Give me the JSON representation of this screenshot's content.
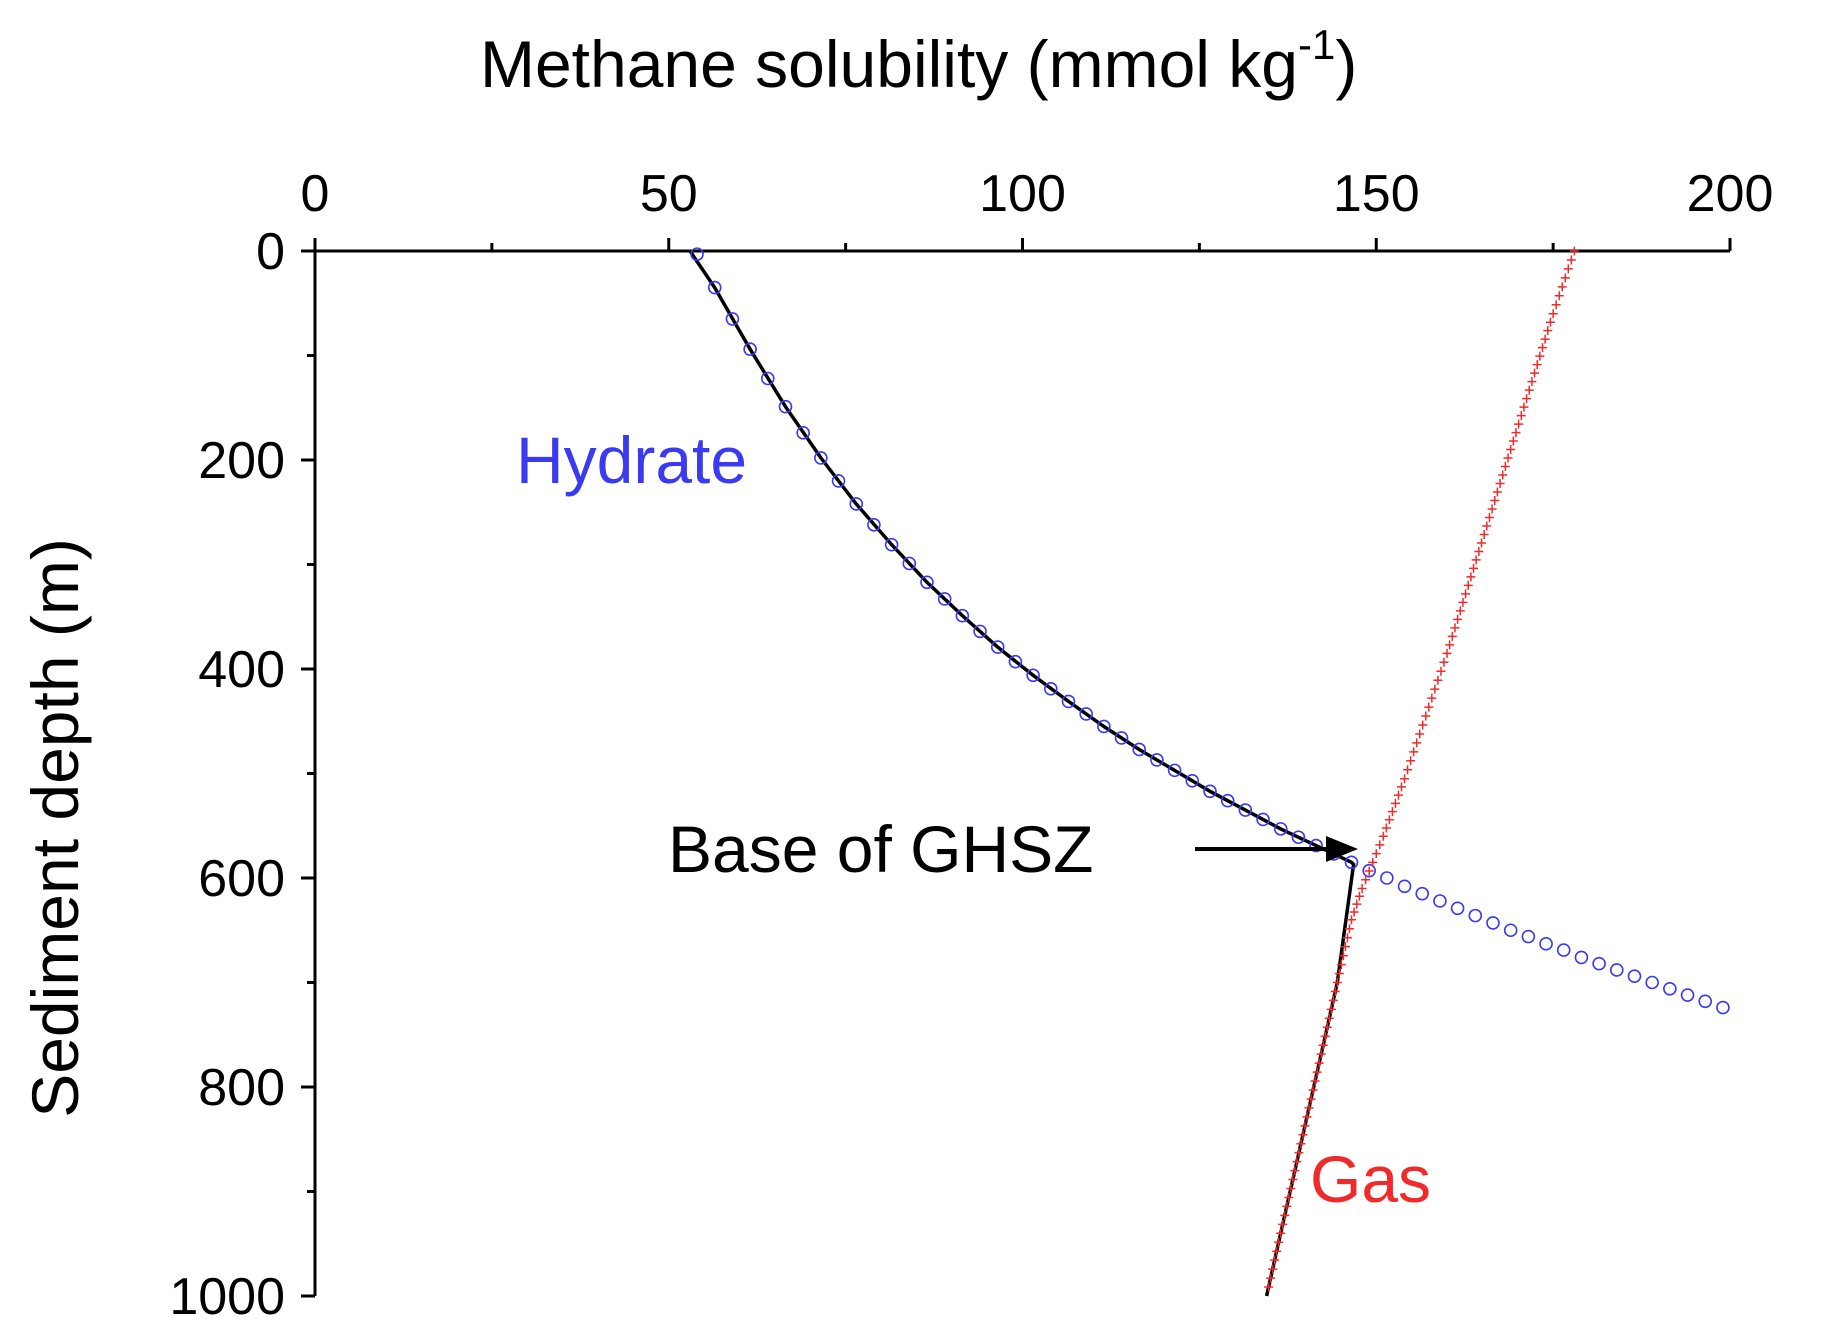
{
  "chart_data": {
    "type": "line",
    "title": "",
    "xlabel": "Methane solubility (mmol kg",
    "xlabel_sup": "-1",
    "xlabel_end": ")",
    "ylabel": "Sediment depth (m)",
    "x_axis_position": "top",
    "y_axis_inverted": true,
    "xlim": [
      0,
      200
    ],
    "ylim": [
      0,
      1000
    ],
    "x_ticks": [
      0,
      50,
      100,
      150,
      200
    ],
    "x_tick_labels": [
      "0",
      "50",
      "100",
      "150",
      "200"
    ],
    "y_ticks": [
      0,
      200,
      400,
      600,
      800,
      1000
    ],
    "y_tick_labels": [
      "0",
      "200",
      "400",
      "600",
      "800",
      "1000"
    ],
    "grid": false,
    "colors": {
      "hydrate": "#3a3af0",
      "gas": "#f02a2a",
      "solubility": "#000000"
    },
    "series": [
      {
        "name": "Hydrate",
        "marker": "circle",
        "x": [
          54,
          56.5,
          59,
          61.5,
          64,
          66.5,
          69,
          71.5,
          74,
          76.5,
          79,
          81.5,
          84,
          86.5,
          89,
          91.5,
          94,
          96.5,
          99,
          101.5,
          104,
          106.5,
          109,
          111.5,
          114,
          116.5,
          119,
          121.5,
          124,
          126.5,
          129,
          131.5,
          134,
          136.5,
          139,
          141.5,
          144,
          146.5,
          149,
          151.5,
          154,
          156.5,
          159,
          161.5,
          164,
          166.5,
          169,
          171.5,
          174,
          176.5,
          179,
          181.5,
          184,
          186.5,
          189,
          191.5,
          194,
          196.5,
          199
        ],
        "y": [
          3,
          35,
          65,
          94,
          122,
          149,
          174,
          198,
          220,
          242,
          262,
          281,
          299,
          317,
          333,
          349,
          364,
          379,
          393,
          406,
          419,
          431,
          443,
          455,
          466,
          477,
          487,
          497,
          507,
          517,
          526,
          535,
          544,
          553,
          561,
          569,
          577,
          585,
          593,
          600,
          608,
          615,
          622,
          629,
          636,
          643,
          650,
          656,
          663,
          669,
          676,
          682,
          688,
          694,
          700,
          706,
          712,
          718,
          724
        ]
      },
      {
        "name": "Gas",
        "marker": "plus",
        "x": [
          178,
          175,
          172,
          169,
          166,
          163,
          160,
          157,
          154,
          151,
          148,
          146.5,
          144.5,
          142.5,
          140.5,
          138.5,
          136.5,
          134.5
        ],
        "y": [
          0,
          60,
          125,
          190,
          255,
          320,
          385,
          445,
          505,
          560,
          610,
          640,
          700,
          760,
          820,
          880,
          940,
          1000
        ]
      },
      {
        "name": "",
        "marker": "line",
        "x": [
          53,
          56.5,
          61.5,
          66.5,
          71.5,
          76.5,
          81.5,
          86.5,
          91.5,
          96.5,
          101.5,
          106.5,
          111.5,
          116.5,
          121.5,
          126.5,
          131.5,
          136.5,
          141.5,
          146.5,
          146.8,
          144.5,
          142.5,
          140.5,
          138.5,
          136.5,
          134.5
        ],
        "y": [
          0,
          35,
          94,
          149,
          198,
          242,
          281,
          317,
          349,
          379,
          406,
          431,
          455,
          477,
          497,
          517,
          535,
          553,
          569,
          585,
          587,
          700,
          760,
          820,
          880,
          940,
          1000
        ]
      }
    ],
    "annotations": {
      "hydrate_label": "Hydrate",
      "gas_label": "Gas",
      "ghsz_label": "Base of GHSZ"
    }
  }
}
